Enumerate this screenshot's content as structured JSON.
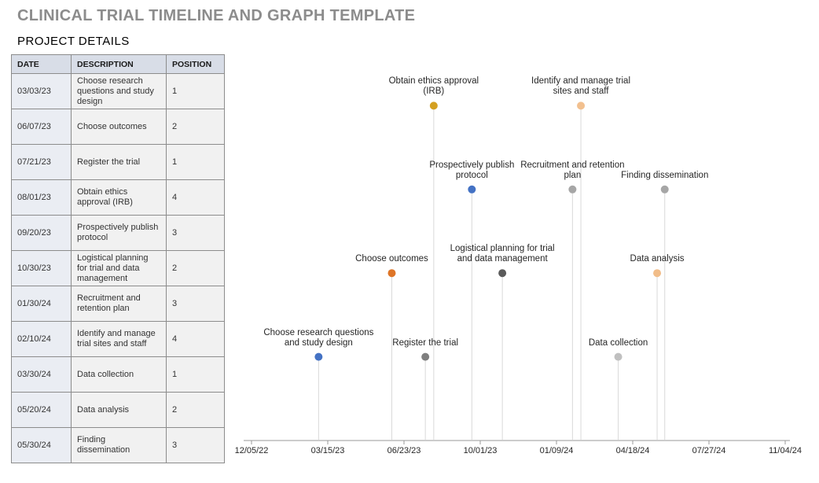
{
  "page": {
    "title": "CLINICAL TRIAL TIMELINE AND GRAPH TEMPLATE",
    "section_title": "PROJECT DETAILS"
  },
  "table": {
    "headers": [
      "DATE",
      "DESCRIPTION",
      "POSITION"
    ],
    "rows": [
      {
        "date": "03/03/23",
        "description": "Choose research questions and study design",
        "position": "1"
      },
      {
        "date": "06/07/23",
        "description": "Choose outcomes",
        "position": "2"
      },
      {
        "date": "07/21/23",
        "description": "Register the trial",
        "position": "1"
      },
      {
        "date": "08/01/23",
        "description": "Obtain ethics approval (IRB)",
        "position": "4"
      },
      {
        "date": "09/20/23",
        "description": "Prospectively publish protocol",
        "position": "3"
      },
      {
        "date": "10/30/23",
        "description": "Logistical planning for trial and data management",
        "position": "2"
      },
      {
        "date": "01/30/24",
        "description": "Recruitment and retention plan",
        "position": "3"
      },
      {
        "date": "02/10/24",
        "description": "Identify and manage trial sites and staff",
        "position": "4"
      },
      {
        "date": "03/30/24",
        "description": "Data collection",
        "position": "1"
      },
      {
        "date": "05/20/24",
        "description": "Data analysis",
        "position": "2"
      },
      {
        "date": "05/30/24",
        "description": "Finding dissemination",
        "position": "3"
      }
    ]
  },
  "chart_data": {
    "type": "scatter",
    "title": "",
    "xlabel": "",
    "ylabel": "",
    "legend": false,
    "grid": false,
    "y_axis_hidden": true,
    "ylim": [
      0,
      4.5
    ],
    "x_axis": {
      "start": "12/05/22",
      "end": "11/04/24",
      "tick_interval_days": 100,
      "tick_labels": [
        "12/05/22",
        "03/15/23",
        "06/23/23",
        "10/01/23",
        "01/09/24",
        "04/18/24",
        "07/27/24",
        "11/04/24"
      ]
    },
    "points": [
      {
        "date": "03/03/23",
        "position": 1,
        "label": "Choose research questions and study design",
        "label_lines": [
          "Choose research questions",
          "and study design"
        ],
        "color": "#4472C4"
      },
      {
        "date": "06/07/23",
        "position": 2,
        "label": "Choose outcomes",
        "label_lines": [
          "Choose outcomes"
        ],
        "color": "#DE7527"
      },
      {
        "date": "07/21/23",
        "position": 1,
        "label": "Register the trial",
        "label_lines": [
          "Register the trial"
        ],
        "color": "#7F7F7F"
      },
      {
        "date": "08/01/23",
        "position": 4,
        "label": "Obtain ethics approval (IRB)",
        "label_lines": [
          "Obtain ethics approval",
          "(IRB)"
        ],
        "color": "#D4A021"
      },
      {
        "date": "09/20/23",
        "position": 3,
        "label": "Prospectively publish protocol",
        "label_lines": [
          "Prospectively publish",
          "protocol"
        ],
        "color": "#4472C4"
      },
      {
        "date": "10/30/23",
        "position": 2,
        "label": "Logistical planning for trial and data management",
        "label_lines": [
          "Logistical planning for trial",
          "and data management"
        ],
        "color": "#5A5A5A"
      },
      {
        "date": "01/30/24",
        "position": 3,
        "label": "Recruitment and retention plan",
        "label_lines": [
          "Recruitment and retention",
          "plan"
        ],
        "color": "#A6A6A6"
      },
      {
        "date": "02/10/24",
        "position": 4,
        "label": "Identify and manage trial sites and staff",
        "label_lines": [
          "Identify and manage trial",
          "sites and staff"
        ],
        "color": "#F2C08F"
      },
      {
        "date": "03/30/24",
        "position": 1,
        "label": "Data collection",
        "label_lines": [
          "Data collection"
        ],
        "color": "#C0C0C0"
      },
      {
        "date": "05/20/24",
        "position": 2,
        "label": "Data analysis",
        "label_lines": [
          "Data analysis"
        ],
        "color": "#F1BD89"
      },
      {
        "date": "05/30/24",
        "position": 3,
        "label": "Finding dissemination",
        "label_lines": [
          "Finding dissemination"
        ],
        "color": "#A6A6A6"
      }
    ]
  },
  "colors": {
    "title_text": "#8C8C8C",
    "table_header_bg": "#D8DDE7",
    "table_date_col_bg": "#EAEDF3",
    "table_cell_bg": "#F1F1F1",
    "table_border": "#8C8C8C",
    "axis_line": "#9A9A9A",
    "stem_line": "#D9D9D9",
    "label_text": "#262626"
  }
}
